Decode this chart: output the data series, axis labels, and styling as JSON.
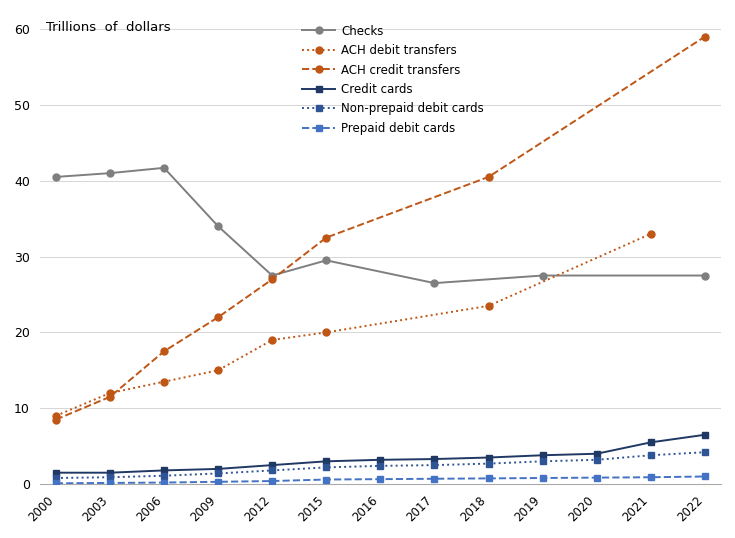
{
  "x_labels": [
    "2000",
    "2003",
    "2006",
    "2009",
    "2012",
    "2015",
    "2016",
    "2017",
    "2018",
    "2019",
    "2020",
    "2021",
    "2022"
  ],
  "x_positions": [
    0,
    1,
    2,
    3,
    4,
    5,
    6,
    7,
    8,
    9,
    10,
    11,
    12
  ],
  "checks": [
    40.5,
    41.0,
    41.7,
    34.0,
    27.5,
    29.5,
    null,
    26.5,
    null,
    27.5,
    null,
    null,
    27.5
  ],
  "ach_debit": [
    9.0,
    12.0,
    13.5,
    15.0,
    19.0,
    20.0,
    null,
    null,
    23.5,
    null,
    null,
    33.0,
    null
  ],
  "ach_credit": [
    8.5,
    11.5,
    17.5,
    22.0,
    27.0,
    32.5,
    null,
    null,
    40.5,
    null,
    null,
    null,
    59.0
  ],
  "credit_cards": [
    1.5,
    1.5,
    1.8,
    2.0,
    2.5,
    3.0,
    3.2,
    3.3,
    3.5,
    3.8,
    4.0,
    5.5,
    6.5
  ],
  "non_prepaid_debit": [
    0.8,
    0.9,
    1.1,
    1.4,
    1.8,
    2.2,
    2.4,
    2.5,
    2.7,
    3.0,
    3.2,
    3.8,
    4.2
  ],
  "prepaid_debit": [
    0.1,
    0.15,
    0.2,
    0.3,
    0.4,
    0.6,
    0.65,
    0.7,
    0.75,
    0.8,
    0.85,
    0.9,
    1.0
  ],
  "ylabel": "Trillions  of  dollars",
  "ylim": [
    0,
    62
  ],
  "yticks": [
    0,
    10,
    20,
    30,
    40,
    50,
    60
  ],
  "checks_color": "#7f7f7f",
  "ach_color": "#bf5615",
  "blue_dark": "#1f3864",
  "blue_mid": "#2f5496",
  "blue_light": "#4472c4",
  "legend_labels": [
    "Checks",
    "ACH debit transfers",
    "ACH credit transfers",
    "Credit cards",
    "Non-prepaid debit cards",
    "Prepaid debit cards"
  ]
}
